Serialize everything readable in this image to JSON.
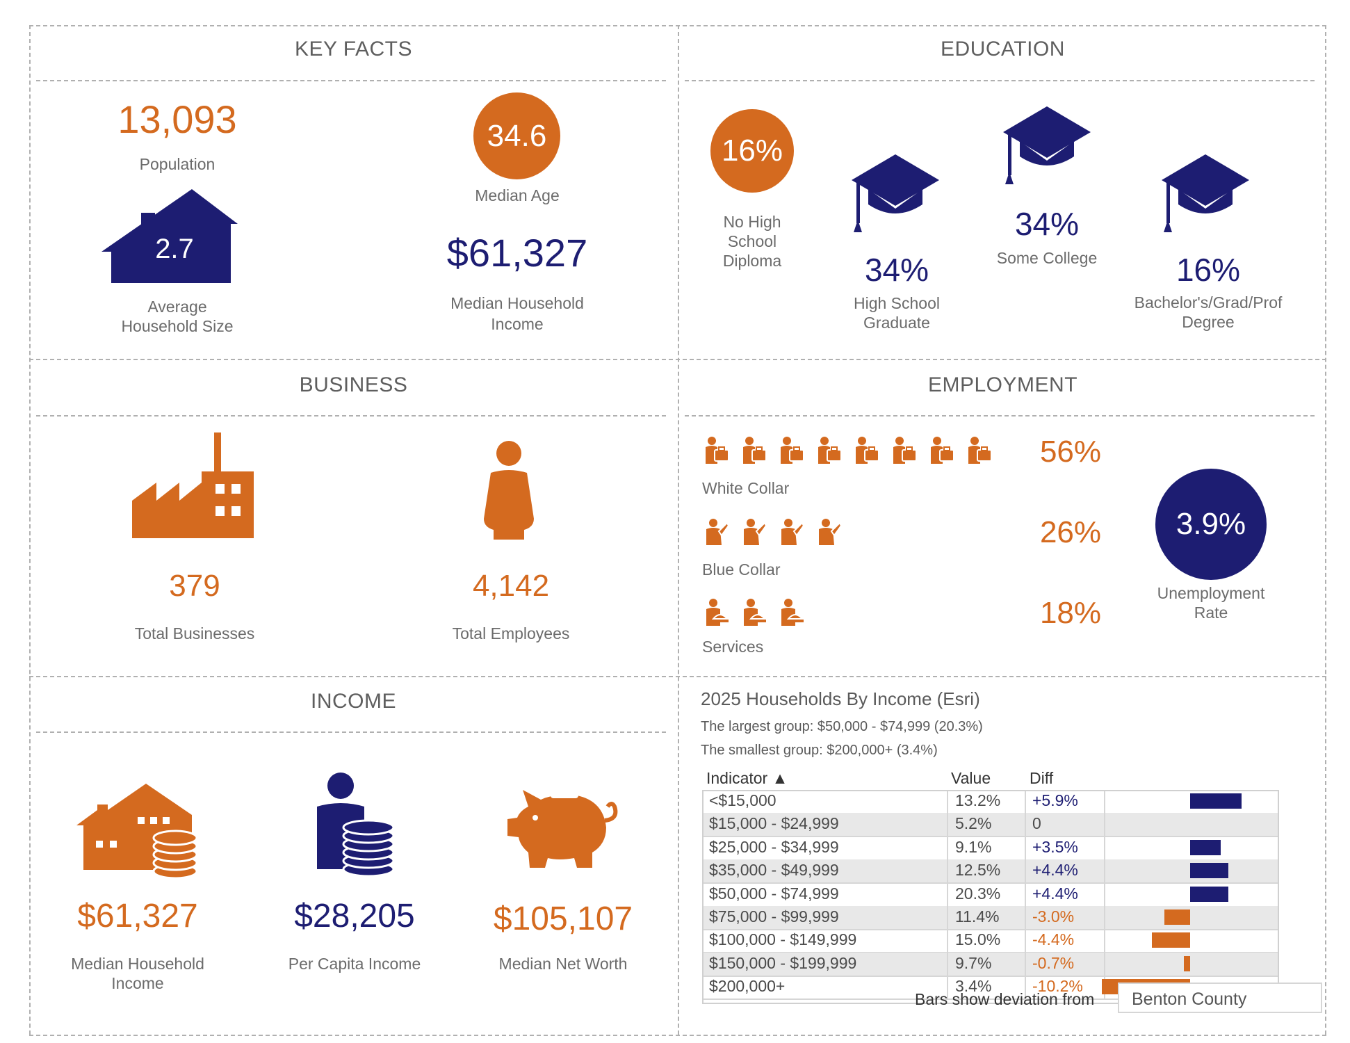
{
  "colors": {
    "orange": "#d46a1f",
    "navy": "#1d1d72",
    "text": "#6b6b6b"
  },
  "key_facts": {
    "title": "KEY FACTS",
    "population_value": "13,093",
    "population_label": "Population",
    "median_age_value": "34.6",
    "median_age_label": "Median Age",
    "household_size_value": "2.7",
    "household_size_label_1": "Average",
    "household_size_label_2": "Household Size",
    "median_income_value": "$61,327",
    "median_income_label_1": "Median Household",
    "median_income_label_2": "Income"
  },
  "education": {
    "title": "EDUCATION",
    "no_diploma_value": "16%",
    "no_diploma_label_1": "No High",
    "no_diploma_label_2": "School",
    "no_diploma_label_3": "Diploma",
    "hs_value": "34%",
    "hs_label_1": "High School",
    "hs_label_2": "Graduate",
    "college_value": "34%",
    "college_label": "Some College",
    "bachelor_value": "16%",
    "bachelor_label_1": "Bachelor's/Grad/Prof",
    "bachelor_label_2": "Degree"
  },
  "business": {
    "title": "BUSINESS",
    "businesses_value": "379",
    "businesses_label": "Total Businesses",
    "employees_value": "4,142",
    "employees_label": "Total Employees"
  },
  "employment": {
    "title": "EMPLOYMENT",
    "white_collar_value": "56%",
    "white_collar_label": "White Collar",
    "white_collar_icons": 8,
    "blue_collar_value": "26%",
    "blue_collar_label": "Blue Collar",
    "blue_collar_icons": 4,
    "services_value": "18%",
    "services_label": "Services",
    "services_icons": 3,
    "unemployment_value": "3.9%",
    "unemployment_label_1": "Unemployment",
    "unemployment_label_2": "Rate"
  },
  "income": {
    "title": "INCOME",
    "median_hh_value": "$61,327",
    "median_hh_label_1": "Median Household",
    "median_hh_label_2": "Income",
    "per_capita_value": "$28,205",
    "per_capita_label": "Per Capita Income",
    "net_worth_value": "$105,107",
    "net_worth_label": "Median Net Worth"
  },
  "households": {
    "title": "2025 Households By Income (Esri)",
    "largest": "The largest group: $50,000 - $74,999 (20.3%)",
    "smallest": "The smallest group: $200,000+ (3.4%)",
    "col_indicator": "Indicator ▲",
    "col_value": "Value",
    "col_diff": "Diff",
    "footer_text": "Bars show deviation from",
    "compare_area": "Benton County",
    "rows": [
      {
        "indicator": "<$15,000",
        "value": "13.2%",
        "diff": "+5.9%",
        "deviation": 5.9
      },
      {
        "indicator": "$15,000 - $24,999",
        "value": "5.2%",
        "diff": "0",
        "deviation": 0
      },
      {
        "indicator": "$25,000 - $34,999",
        "value": "9.1%",
        "diff": "+3.5%",
        "deviation": 3.5
      },
      {
        "indicator": "$35,000 - $49,999",
        "value": "12.5%",
        "diff": "+4.4%",
        "deviation": 4.4
      },
      {
        "indicator": "$50,000 - $74,999",
        "value": "20.3%",
        "diff": "+4.4%",
        "deviation": 4.4
      },
      {
        "indicator": "$75,000 - $99,999",
        "value": "11.4%",
        "diff": "-3.0%",
        "deviation": -3.0
      },
      {
        "indicator": "$100,000 - $149,999",
        "value": "15.0%",
        "diff": "-4.4%",
        "deviation": -4.4
      },
      {
        "indicator": "$150,000 - $199,999",
        "value": "9.7%",
        "diff": "-0.7%",
        "deviation": -0.7
      },
      {
        "indicator": "$200,000+",
        "value": "3.4%",
        "diff": "-10.2%",
        "deviation": -10.2
      }
    ]
  }
}
